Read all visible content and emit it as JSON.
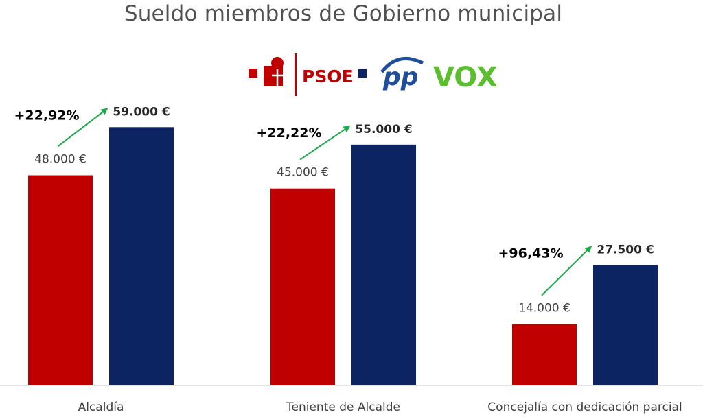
{
  "chart_data": {
    "type": "bar",
    "title": "Sueldo miembros de Gobierno municipal",
    "xlabel": "",
    "ylabel": "",
    "ylim": [
      0,
      65000
    ],
    "grid": false,
    "legend_placement": "top-center",
    "categories": [
      "Alcaldía",
      "Teniente de Alcalde",
      "Concejalía con dedicación parcial"
    ],
    "series": [
      {
        "name": "PSOE",
        "color": "#C00000",
        "values": [
          48000,
          45000,
          14000
        ],
        "labels": [
          "48.000 €",
          "45.000 €",
          "14.000 €"
        ]
      },
      {
        "name": "PP VOX",
        "color": "#0C2461",
        "values": [
          59000,
          55000,
          27500
        ],
        "labels": [
          "59.000 €",
          "55.000 €",
          "27.500 €"
        ]
      }
    ],
    "changes": [
      "+22,92%",
      "+22,22%",
      "+96,43%"
    ],
    "legend": {
      "psoe_text": "PSOE",
      "pp_text": "pp",
      "vox_text": "VOX",
      "psoe_color": "#C00000",
      "pp_color": "#0C2461",
      "vox_color": "#5BBE2E",
      "logo_pp_color": "#1F4E9A"
    },
    "arrow_color": "#1DA84A",
    "axis_color": "#D9D9D9",
    "label_colors": {
      "psoe": "#404040",
      "ppvox": "#262626"
    }
  }
}
